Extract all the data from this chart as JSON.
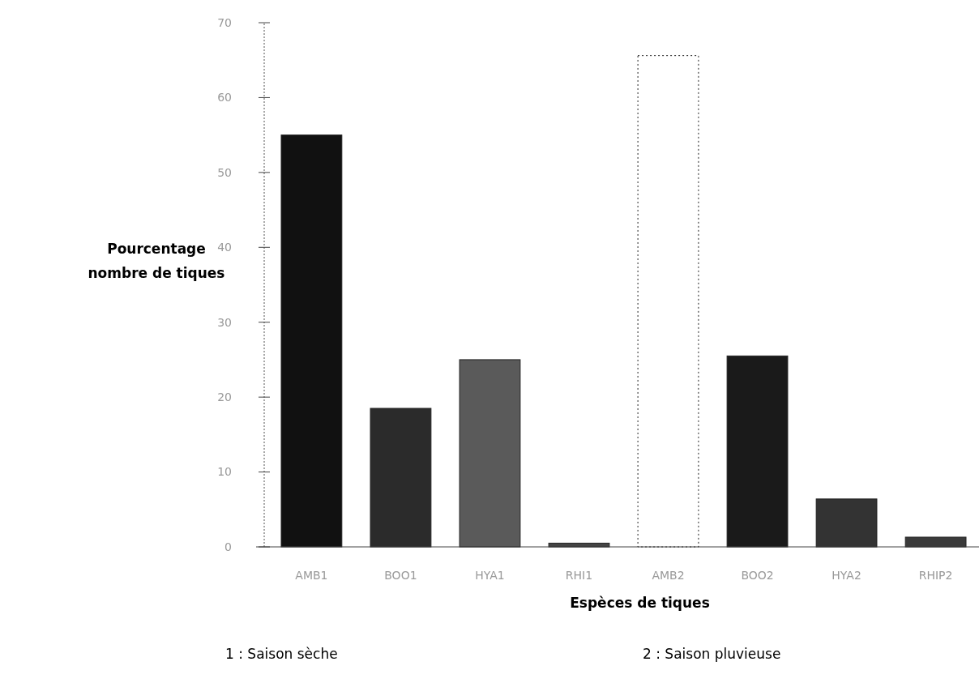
{
  "chart_data": {
    "type": "bar",
    "xlabel": "Espèces de tiques",
    "ylabel": "Pourcentage\nnombre de tiques",
    "categories": [
      "AMB1",
      "BOO1",
      "HYA1",
      "RHI1",
      "AMB2",
      "BOO2",
      "HYA2",
      "RHIP2"
    ],
    "values": [
      55,
      18.5,
      25,
      0.5,
      65.6,
      25.5,
      6.4,
      1.3
    ],
    "colors": [
      "#111111",
      "#2b2b2b",
      "#5a5a5a",
      "#444444",
      "#ffffff",
      "#1a1a1a",
      "#333333",
      "#3a3a3a"
    ],
    "ylim": [
      0,
      70
    ],
    "yticks": [
      0,
      10,
      20,
      30,
      40,
      50,
      60,
      70
    ],
    "grid": false,
    "annotations": [
      "1 : Saison sèche",
      "2 : Saison pluvieuse"
    ]
  }
}
